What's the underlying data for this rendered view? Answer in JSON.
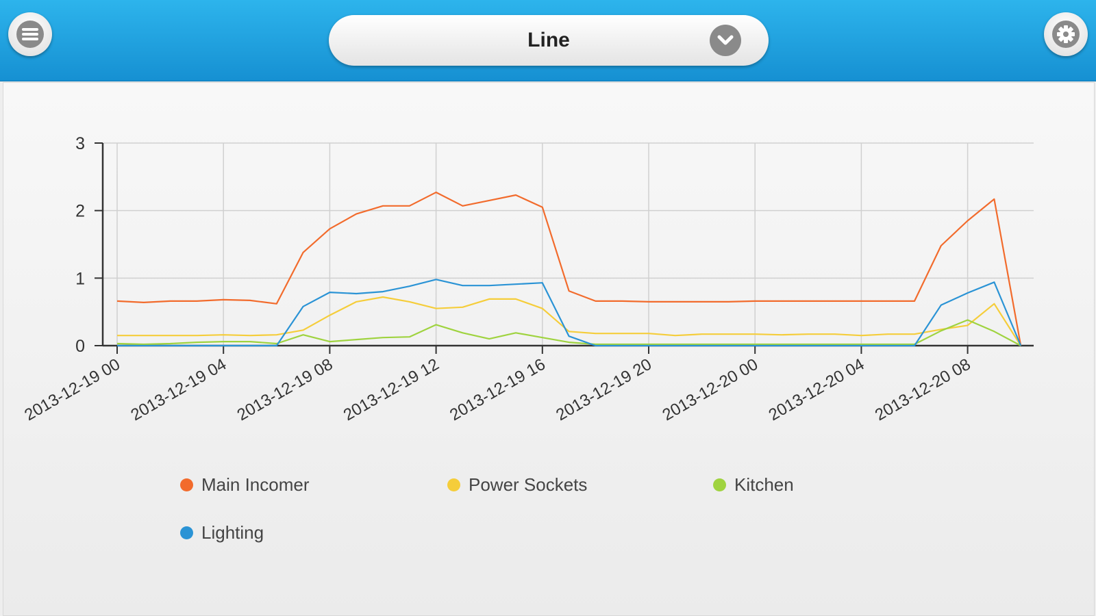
{
  "header": {
    "selector_label": "Line",
    "icons": {
      "menu": "menu-icon",
      "settings": "gear-icon",
      "dropdown": "chevron-down-icon"
    }
  },
  "chart_data": {
    "type": "line",
    "title": "",
    "xlabel": "",
    "ylabel": "",
    "ylim": [
      0,
      3
    ],
    "yticks": [
      0,
      1,
      2,
      3
    ],
    "xticks": [
      "2013-12-19 00",
      "2013-12-19 04",
      "2013-12-19 08",
      "2013-12-19 12",
      "2013-12-19 16",
      "2013-12-19 20",
      "2013-12-20 00",
      "2013-12-20 04",
      "2013-12-20 08"
    ],
    "x": [
      "2013-12-19 00",
      "2013-12-19 01",
      "2013-12-19 02",
      "2013-12-19 03",
      "2013-12-19 04",
      "2013-12-19 05",
      "2013-12-19 06",
      "2013-12-19 07",
      "2013-12-19 08",
      "2013-12-19 09",
      "2013-12-19 10",
      "2013-12-19 11",
      "2013-12-19 12",
      "2013-12-19 13",
      "2013-12-19 14",
      "2013-12-19 15",
      "2013-12-19 16",
      "2013-12-19 17",
      "2013-12-19 18",
      "2013-12-19 19",
      "2013-12-19 20",
      "2013-12-19 21",
      "2013-12-19 22",
      "2013-12-19 23",
      "2013-12-20 00",
      "2013-12-20 01",
      "2013-12-20 02",
      "2013-12-20 03",
      "2013-12-20 04",
      "2013-12-20 05",
      "2013-12-20 06",
      "2013-12-20 07",
      "2013-12-20 08",
      "2013-12-20 09",
      "2013-12-20 10"
    ],
    "grid": true,
    "legend_position": "bottom",
    "series": [
      {
        "name": "Main Incomer",
        "color": "#f26b2c",
        "values": [
          0.66,
          0.64,
          0.66,
          0.66,
          0.68,
          0.67,
          0.62,
          1.38,
          1.73,
          1.95,
          2.07,
          2.07,
          2.27,
          2.07,
          2.15,
          2.23,
          2.05,
          0.81,
          0.66,
          0.66,
          0.65,
          0.65,
          0.65,
          0.65,
          0.66,
          0.66,
          0.66,
          0.66,
          0.66,
          0.66,
          0.66,
          1.48,
          1.85,
          2.17,
          0.0
        ]
      },
      {
        "name": "Power Sockets",
        "color": "#f5cd3a",
        "values": [
          0.15,
          0.15,
          0.15,
          0.15,
          0.16,
          0.15,
          0.16,
          0.23,
          0.45,
          0.65,
          0.72,
          0.65,
          0.55,
          0.57,
          0.69,
          0.69,
          0.55,
          0.21,
          0.18,
          0.18,
          0.18,
          0.15,
          0.17,
          0.17,
          0.17,
          0.16,
          0.17,
          0.17,
          0.15,
          0.17,
          0.17,
          0.24,
          0.3,
          0.62,
          0.0
        ]
      },
      {
        "name": "Kitchen",
        "color": "#9fd33f",
        "values": [
          0.03,
          0.02,
          0.03,
          0.05,
          0.06,
          0.06,
          0.03,
          0.16,
          0.06,
          0.09,
          0.12,
          0.13,
          0.31,
          0.19,
          0.1,
          0.19,
          0.12,
          0.05,
          0.02,
          0.02,
          0.02,
          0.02,
          0.02,
          0.02,
          0.02,
          0.02,
          0.02,
          0.02,
          0.02,
          0.02,
          0.02,
          0.22,
          0.38,
          0.21,
          0.0
        ]
      },
      {
        "name": "Lighting",
        "color": "#2a93d5",
        "values": [
          0,
          0,
          0,
          0,
          0,
          0,
          0,
          0.58,
          0.79,
          0.77,
          0.8,
          0.88,
          0.98,
          0.89,
          0.89,
          0.91,
          0.93,
          0.14,
          0,
          0,
          0,
          0,
          0,
          0,
          0,
          0,
          0,
          0,
          0,
          0,
          0,
          0.6,
          0.78,
          0.94,
          0.0
        ]
      }
    ]
  }
}
